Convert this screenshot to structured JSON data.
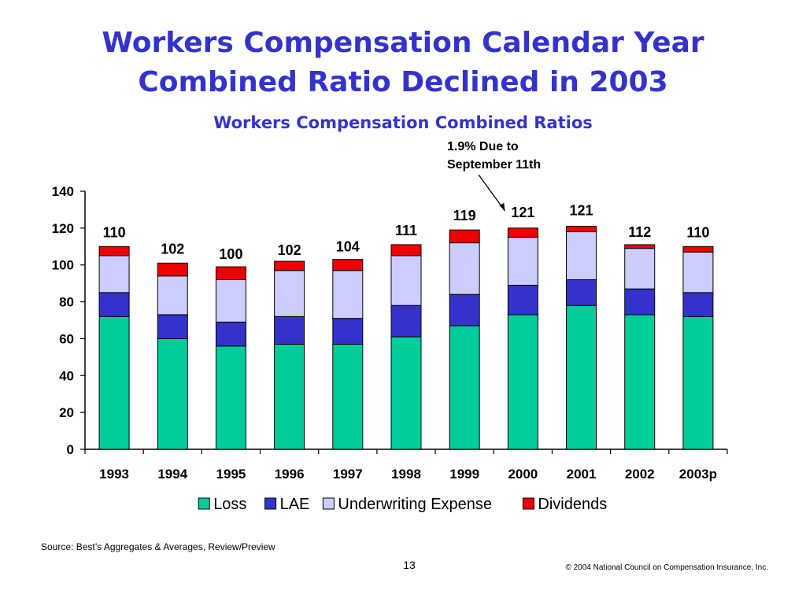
{
  "slide": {
    "title_line1": "Workers Compensation Calendar Year",
    "title_line2": "Combined Ratio Declined in 2003",
    "source": "Source: Best’s Aggregates & Averages, Review/Preview",
    "page_number": "13",
    "copyright": "© 2004 National Council on Compensation Insurance, Inc."
  },
  "chart_data": {
    "type": "bar",
    "stacked": true,
    "title": "Workers Compensation Combined Ratios",
    "xlabel": "",
    "ylabel": "",
    "ylim": [
      0,
      140
    ],
    "yticks": [
      0,
      20,
      40,
      60,
      80,
      100,
      120,
      140
    ],
    "grid": false,
    "legend_position": "bottom",
    "categories": [
      "1993",
      "1994",
      "1995",
      "1996",
      "1997",
      "1998",
      "1999",
      "2000",
      "2001",
      "2002",
      "2003p"
    ],
    "series": [
      {
        "name": "Loss",
        "color": "#00cc99",
        "values": [
          72,
          60,
          56,
          57,
          57,
          61,
          67,
          73,
          78,
          73,
          72
        ]
      },
      {
        "name": "LAE",
        "color": "#3333cc",
        "values": [
          13,
          13,
          13,
          15,
          14,
          17,
          17,
          16,
          14,
          14,
          13
        ]
      },
      {
        "name": "Underwriting Expense",
        "color": "#ccccff",
        "values": [
          20,
          21,
          23,
          25,
          26,
          27,
          28,
          26,
          26,
          22,
          22
        ]
      },
      {
        "name": "Dividends",
        "color": "#ee0000",
        "values": [
          5,
          7,
          7,
          5,
          6,
          6,
          7,
          5,
          3,
          2,
          3
        ]
      }
    ],
    "totals": [
      "110",
      "102",
      "100",
      "102",
      "104",
      "111",
      "119",
      "121",
      "121",
      "112",
      "110"
    ],
    "annotation": {
      "line1": "1.9% Due to",
      "line2": "September 11th",
      "target_category": "2000"
    }
  }
}
